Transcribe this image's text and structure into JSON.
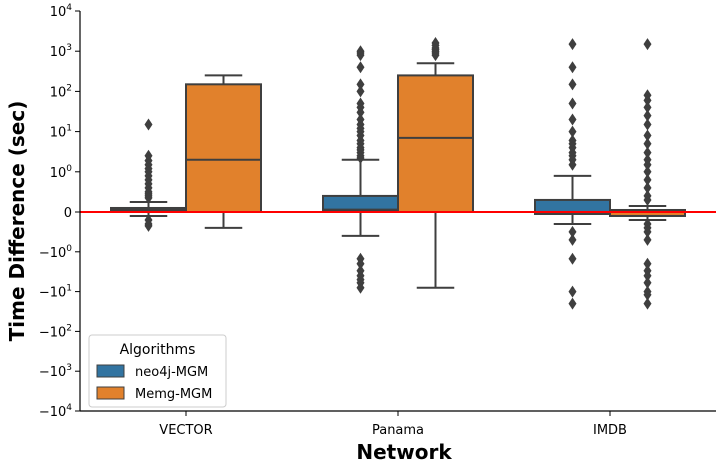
{
  "chart_data": {
    "type": "box",
    "xlabel": "Network",
    "ylabel": "Time Difference (sec)",
    "yscale": "symlog",
    "ylim": [
      -10000,
      10000
    ],
    "categories": [
      "VECTOR",
      "Panama",
      "IMDB"
    ],
    "y_ticks": [
      {
        "value": 10000,
        "label": "10",
        "exp": "4"
      },
      {
        "value": 1000,
        "label": "10",
        "exp": "3"
      },
      {
        "value": 100,
        "label": "10",
        "exp": "2"
      },
      {
        "value": 10,
        "label": "10",
        "exp": "1"
      },
      {
        "value": 1,
        "label": "10",
        "exp": "0"
      },
      {
        "value": 0,
        "label": "0",
        "exp": ""
      },
      {
        "value": -1,
        "label": "−10",
        "exp": "0"
      },
      {
        "value": -10,
        "label": "−10",
        "exp": "1"
      },
      {
        "value": -100,
        "label": "−10",
        "exp": "2"
      },
      {
        "value": -1000,
        "label": "−10",
        "exp": "3"
      },
      {
        "value": -10000,
        "label": "−10",
        "exp": "4"
      }
    ],
    "reference_line": {
      "value": 0,
      "color": "#ff0000"
    },
    "legend": {
      "title": "Algorithms",
      "position": "lower-left"
    },
    "series": [
      {
        "name": "neo4j-MGM",
        "color": "#3274a1",
        "boxes": [
          {
            "whislo": -0.1,
            "q1": 0.01,
            "median": 0.05,
            "q3": 0.1,
            "whishi": 0.25,
            "fliers": [
              15,
              2.5,
              1.9,
              1.5,
              1.2,
              1.0,
              0.9,
              0.8,
              0.7,
              0.6,
              0.5,
              0.45,
              0.4,
              0.35,
              -0.2,
              -0.3,
              -0.35
            ]
          },
          {
            "whislo": -0.6,
            "q1": 0.02,
            "median": 0.06,
            "q3": 0.4,
            "whishi": 2,
            "fliers": [
              1000,
              900,
              800,
              400,
              150,
              100,
              50,
              40,
              30,
              20,
              15,
              12,
              10,
              8,
              6,
              5,
              4,
              3.5,
              3,
              2.5,
              2.2,
              -1.5,
              -2,
              -3,
              -4,
              -5,
              -6,
              -8
            ]
          },
          {
            "whislo": -0.3,
            "q1": -0.05,
            "median": 0.0,
            "q3": 0.3,
            "whishi": 0.9,
            "fliers": [
              1500,
              400,
              150,
              50,
              20,
              10,
              6,
              5,
              4,
              3,
              2.5,
              2,
              1.5,
              -0.5,
              -0.7,
              -1.5,
              -10,
              -20
            ]
          }
        ]
      },
      {
        "name": "Memg-MGM",
        "color": "#e1812c",
        "boxes": [
          {
            "whislo": -0.4,
            "q1": 0.0,
            "median": 2,
            "q3": 150,
            "whishi": 250,
            "fliers": []
          },
          {
            "whislo": -8,
            "q1": 0.0,
            "median": 7,
            "q3": 250,
            "whishi": 500,
            "fliers": [
              1600,
              1400,
              1200,
              1100,
              1000,
              900,
              800
            ]
          },
          {
            "whislo": -0.2,
            "q1": -0.1,
            "median": 0.0,
            "q3": 0.05,
            "whishi": 0.15,
            "fliers": [
              1500,
              80,
              60,
              40,
              25,
              15,
              8,
              5,
              3,
              2,
              1.5,
              1,
              0.8,
              0.6,
              0.4,
              0.3,
              -0.3,
              -0.4,
              -0.5,
              -0.7,
              -2,
              -3,
              -4,
              -6,
              -10,
              -12,
              -20
            ]
          }
        ]
      }
    ]
  }
}
